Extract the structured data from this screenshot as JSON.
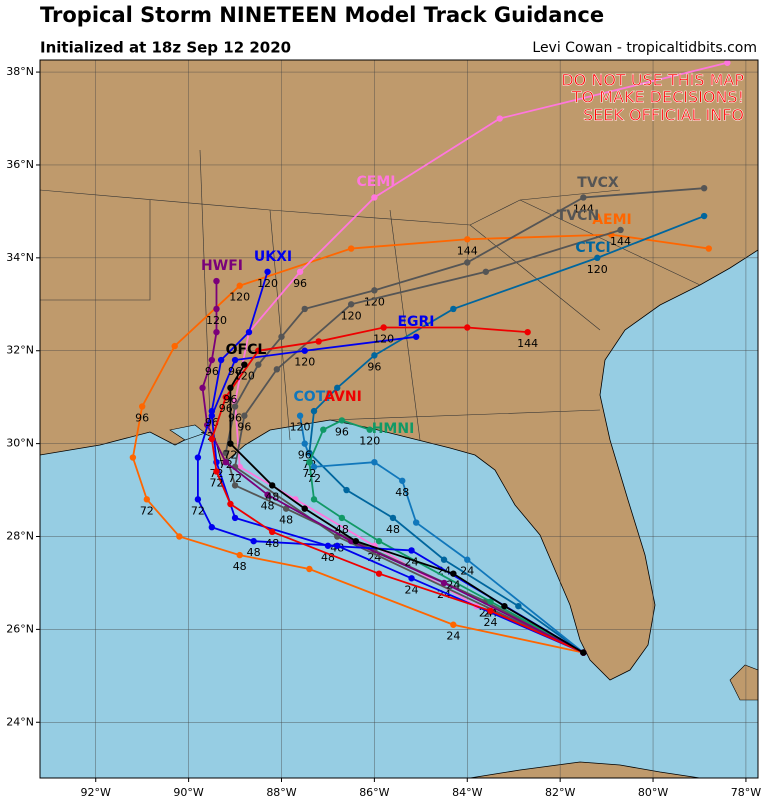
{
  "map": {
    "type": "track-map",
    "title": "Tropical Storm NINETEEN Model Track Guidance",
    "subtitle": "Initialized at 18z Sep 12 2020",
    "credit": "Levi Cowan - tropicaltidbits.com",
    "warning": [
      "DO NOT USE THIS MAP",
      "TO MAKE DECISIONS!",
      "SEEK OFFICIAL INFO"
    ],
    "xlim": [
      -93.2,
      -77.74
    ],
    "ylim": [
      22.8,
      38.26
    ],
    "xticks": [
      {
        "value": -92,
        "label": "92°W"
      },
      {
        "value": -90,
        "label": "90°W"
      },
      {
        "value": -88,
        "label": "88°W"
      },
      {
        "value": -86,
        "label": "86°W"
      },
      {
        "value": -84,
        "label": "84°W"
      },
      {
        "value": -82,
        "label": "82°W"
      },
      {
        "value": -80,
        "label": "80°W"
      },
      {
        "value": -78,
        "label": "78°W"
      }
    ],
    "yticks": [
      {
        "value": 24,
        "label": "24°N"
      },
      {
        "value": 26,
        "label": "26°N"
      },
      {
        "value": 28,
        "label": "28°N"
      },
      {
        "value": 30,
        "label": "30°N"
      },
      {
        "value": 32,
        "label": "32°N"
      },
      {
        "value": 34,
        "label": "34°N"
      },
      {
        "value": 36,
        "label": "36°N"
      },
      {
        "value": 38,
        "label": "38°N"
      }
    ],
    "grid": true,
    "tracks": [
      {
        "name": "AEMI",
        "color": "#ff6600",
        "lon": [
          -81.5,
          -84.3,
          -87.4,
          -88.9,
          -90.2,
          -90.9,
          -91.2,
          -91.0,
          -90.3,
          -88.9,
          -86.5,
          -84.0,
          -80.9,
          -78.8
        ],
        "lat": [
          25.5,
          26.1,
          27.3,
          27.6,
          28.0,
          28.8,
          29.7,
          30.8,
          32.1,
          33.4,
          34.2,
          34.4,
          34.5,
          34.2
        ],
        "hours": [
          null,
          24,
          null,
          48,
          null,
          72,
          null,
          96,
          null,
          120,
          null,
          144,
          null,
          null
        ]
      },
      {
        "name": "CEMI",
        "color": "#ff77dd",
        "lon": [
          -81.5,
          -83.8,
          -86.0,
          -87.7,
          -88.9,
          -89.0,
          -88.7,
          -87.6,
          -86.0,
          -83.3,
          -78.4
        ],
        "lat": [
          25.5,
          26.5,
          27.8,
          28.8,
          29.5,
          30.9,
          32.4,
          33.7,
          35.3,
          37.0,
          38.2
        ],
        "hours": [
          null,
          null,
          24,
          null,
          null,
          null,
          null,
          96,
          null,
          null,
          null
        ]
      },
      {
        "name": "TVCX",
        "color": "#555555",
        "lon": [
          -81.5,
          -83.6,
          -86.0,
          -87.9,
          -89.0,
          -89.2,
          -89.0,
          -88.5,
          -88.0,
          -87.5,
          -86.0,
          -84.0,
          -81.5,
          -78.9
        ],
        "lat": [
          25.5,
          26.6,
          27.7,
          28.6,
          29.1,
          29.8,
          30.8,
          31.7,
          32.3,
          32.9,
          33.3,
          33.9,
          35.3,
          35.5
        ],
        "hours": [
          null,
          24,
          null,
          48,
          null,
          72,
          96,
          null,
          null,
          null,
          120,
          null,
          144,
          null
        ]
      },
      {
        "name": "TVCN",
        "color": "#555555",
        "lon": [
          -81.5,
          -86.8,
          -89.0,
          -88.8,
          -88.1,
          -86.5,
          -83.6,
          -80.7
        ],
        "lat": [
          25.5,
          28.0,
          29.5,
          30.6,
          31.6,
          33.0,
          33.7,
          34.6
        ],
        "hours": [
          null,
          48,
          72,
          96,
          null,
          120,
          null,
          144
        ]
      },
      {
        "name": "CTCI",
        "color": "#00669e",
        "lon": [
          -81.5,
          -82.9,
          -84.5,
          -85.6,
          -86.6,
          -87.4,
          -87.3,
          -86.8,
          -86.0,
          -84.3,
          -81.2,
          -78.9
        ],
        "lat": [
          25.5,
          26.5,
          27.5,
          28.4,
          29.0,
          29.8,
          30.7,
          31.2,
          31.9,
          32.9,
          34.0,
          34.9
        ],
        "hours": [
          null,
          null,
          24,
          48,
          null,
          72,
          null,
          null,
          96,
          null,
          120,
          null
        ]
      },
      {
        "name": "COTI",
        "color": "#1177bb",
        "lon": [
          -81.5,
          -84.0,
          -85.1,
          -85.4,
          -86.0,
          -87.3,
          -87.5,
          -87.6
        ],
        "lat": [
          25.5,
          27.5,
          28.3,
          29.2,
          29.6,
          29.5,
          30.0,
          30.6
        ],
        "hours": [
          null,
          24,
          null,
          48,
          null,
          72,
          96,
          120
        ]
      },
      {
        "name": "HMNI",
        "color": "#119966",
        "lon": [
          -81.5,
          -83.5,
          -85.9,
          -86.7,
          -87.3,
          -87.4,
          -87.1,
          -86.7,
          -86.1
        ],
        "lat": [
          25.5,
          26.6,
          27.9,
          28.4,
          28.8,
          29.6,
          30.3,
          30.5,
          30.3
        ],
        "hours": [
          null,
          24,
          null,
          48,
          null,
          72,
          null,
          96,
          120
        ]
      },
      {
        "name": "HWFI",
        "color": "#7a007a",
        "lon": [
          -81.5,
          -84.5,
          -86.5,
          -88.3,
          -89.2,
          -89.6,
          -89.7,
          -89.5,
          -89.4,
          -89.4,
          -89.4
        ],
        "lat": [
          25.5,
          27.0,
          27.9,
          28.9,
          29.6,
          30.4,
          31.2,
          31.8,
          32.4,
          32.9,
          33.5
        ],
        "hours": [
          null,
          24,
          null,
          48,
          null,
          72,
          null,
          96,
          null,
          120,
          null
        ]
      },
      {
        "name": "UKXI",
        "color": "#0000ee",
        "lon": [
          -81.5,
          -85.2,
          -86.8,
          -88.6,
          -89.5,
          -89.8,
          -89.8,
          -89.5,
          -89.3,
          -88.7,
          -88.3
        ],
        "lat": [
          25.5,
          27.1,
          27.8,
          27.9,
          28.2,
          28.8,
          29.7,
          30.7,
          31.8,
          32.4,
          33.7
        ],
        "hours": [
          null,
          24,
          null,
          48,
          null,
          72,
          null,
          96,
          null,
          null,
          120
        ]
      },
      {
        "name": "EGRI",
        "color": "#0000ee",
        "lon": [
          -81.5,
          -85.2,
          -87.0,
          -89.0,
          -89.4,
          -89.5,
          -89.0,
          -87.5,
          -85.1
        ],
        "lat": [
          25.5,
          27.7,
          27.8,
          28.4,
          29.6,
          30.6,
          31.8,
          32.0,
          32.3
        ],
        "hours": [
          null,
          24,
          48,
          null,
          72,
          null,
          96,
          120,
          null
        ]
      },
      {
        "name": "AVNI",
        "color": "#ee0000",
        "lon": [
          -81.5,
          -83.5,
          -85.9,
          -88.2,
          -89.1,
          -89.4,
          -89.5,
          -89.2,
          -88.5,
          -87.2,
          -85.8,
          -84.0,
          -82.7
        ],
        "lat": [
          25.5,
          26.4,
          27.2,
          28.1,
          28.7,
          29.4,
          30.1,
          31.0,
          32.0,
          32.2,
          32.5,
          32.5,
          32.4
        ],
        "hours": [
          null,
          24,
          null,
          48,
          null,
          72,
          null,
          96,
          null,
          null,
          120,
          null,
          144
        ]
      },
      {
        "name": "OFCL",
        "color": "#000000",
        "lon": [
          -81.5,
          -83.2,
          -84.3,
          -86.4,
          -87.5,
          -88.2,
          -89.1,
          -89.1,
          -88.8
        ],
        "lat": [
          25.5,
          26.5,
          27.2,
          27.9,
          28.6,
          29.1,
          30.0,
          31.2,
          31.7
        ],
        "hours": [
          null,
          null,
          24,
          null,
          null,
          48,
          72,
          96,
          120
        ]
      }
    ]
  }
}
